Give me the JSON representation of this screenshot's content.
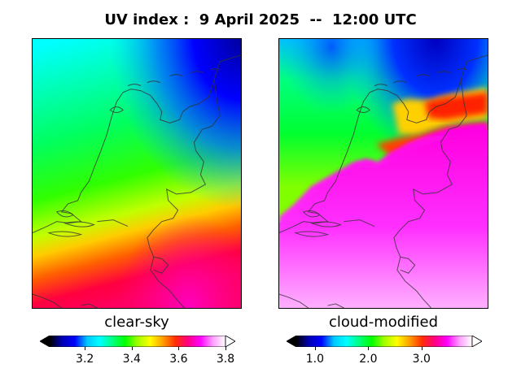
{
  "title": "UV index :  9 April 2025  --  12:00 UTC",
  "panels": [
    {
      "label": "clear-sky",
      "colorbar": {
        "min": 3.05,
        "max": 3.8,
        "ticks": [
          "3.2",
          "3.4",
          "3.6",
          "3.8"
        ],
        "tick_values": [
          3.2,
          3.4,
          3.6,
          3.8
        ],
        "extend": "both"
      }
    },
    {
      "label": "cloud-modified",
      "colorbar": {
        "min": 0.65,
        "max": 3.95,
        "ticks": [
          "1.0",
          "2.0",
          "3.0"
        ],
        "tick_values": [
          1.0,
          2.0,
          3.0
        ],
        "extend": "both"
      }
    }
  ],
  "colormap": {
    "name": "gist_ncar-like",
    "stops": [
      "#000000",
      "#0000b4",
      "#0000ff",
      "#00c8ff",
      "#00ffff",
      "#00ff80",
      "#00ff00",
      "#a0ff00",
      "#ffff00",
      "#ffa000",
      "#ff3000",
      "#ff0080",
      "#ff00ff",
      "#ffa0ff",
      "#ffffff"
    ]
  },
  "colors": {
    "coastline": "#333333"
  }
}
